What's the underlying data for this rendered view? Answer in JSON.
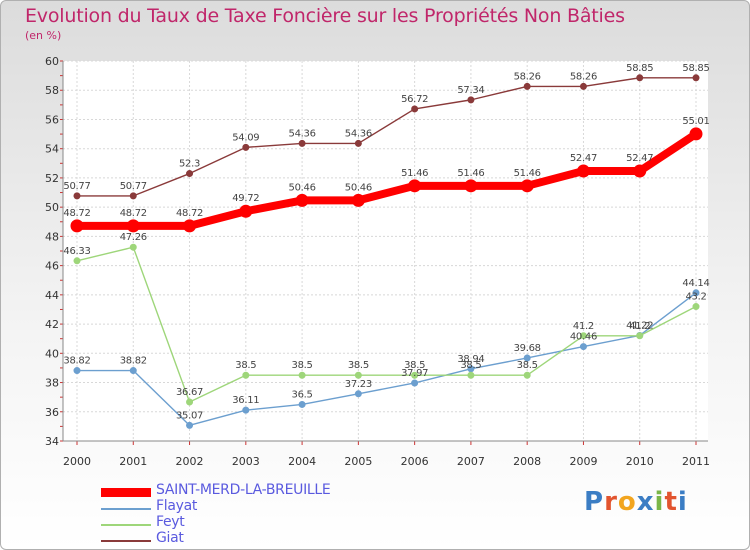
{
  "title": "Evolution du Taux de Taxe Foncière sur les Propriétés Non Bâties",
  "unit_label": "(en %)",
  "logo": {
    "text": "Proxiti",
    "letters": [
      "P",
      "r",
      "o",
      "x",
      "i",
      "t",
      "i"
    ],
    "colors": [
      "#3b7dc4",
      "#e2542e",
      "#f2a51f",
      "#3b7dc4",
      "#7ab648",
      "#e2542e",
      "#3b7dc4"
    ]
  },
  "chart_data": {
    "type": "line",
    "title": "Evolution du Taux de Taxe Foncière sur les Propriétés Non Bâties",
    "ylabel": "(en %)",
    "x": [
      "2000",
      "2001",
      "2002",
      "2003",
      "2004",
      "2005",
      "2006",
      "2007",
      "2008",
      "2009",
      "2010",
      "2011"
    ],
    "ylim": [
      34,
      60
    ],
    "yticks": [
      34,
      36,
      38,
      40,
      42,
      44,
      46,
      48,
      50,
      52,
      54,
      56,
      58,
      60
    ],
    "grid": true,
    "legend_position": "bottom-left",
    "series": [
      {
        "name": "SAINT-MERD-LA-BREUILLE",
        "color": "#ff0000",
        "values": [
          48.72,
          48.72,
          48.72,
          49.72,
          50.46,
          50.46,
          51.46,
          51.46,
          51.46,
          52.47,
          52.47,
          55.01
        ],
        "labels": [
          "48.72",
          "48.72",
          "48.72",
          "49.72",
          "50.46",
          "50.46",
          "51.46",
          "51.46",
          "51.46",
          "52.47",
          "52.47",
          "55.01"
        ]
      },
      {
        "name": "Flayat",
        "color": "#6c9fcf",
        "values": [
          38.82,
          38.82,
          35.07,
          36.11,
          36.5,
          37.23,
          37.97,
          38.94,
          39.68,
          40.46,
          41.22,
          44.14
        ],
        "labels": [
          "38.82",
          "38.82",
          "35.07",
          "36.11",
          "36.5",
          "37.23",
          "37.97",
          "38.94",
          "39.68",
          "40.46",
          "41.22",
          "44.14"
        ]
      },
      {
        "name": "Feyt",
        "color": "#9ed67a",
        "values": [
          46.33,
          47.26,
          36.67,
          38.5,
          38.5,
          38.5,
          38.5,
          38.5,
          38.5,
          41.2,
          41.2,
          43.2
        ],
        "labels": [
          "46.33",
          "47.26",
          "36.67",
          "38.5",
          "38.5",
          "38.5",
          "38.5",
          "38.5",
          "38.5",
          "41.2",
          "41.2",
          "43.2"
        ]
      },
      {
        "name": "Giat",
        "color": "#8a3a3a",
        "values": [
          50.77,
          50.77,
          52.3,
          54.09,
          54.36,
          54.36,
          56.72,
          57.34,
          58.26,
          58.26,
          58.85,
          58.85
        ],
        "labels": [
          "50.77",
          "50.77",
          "52.3",
          "54.09",
          "54.36",
          "54.36",
          "56.72",
          "57.34",
          "58.26",
          "58.26",
          "58.85",
          "58.85"
        ]
      }
    ]
  }
}
